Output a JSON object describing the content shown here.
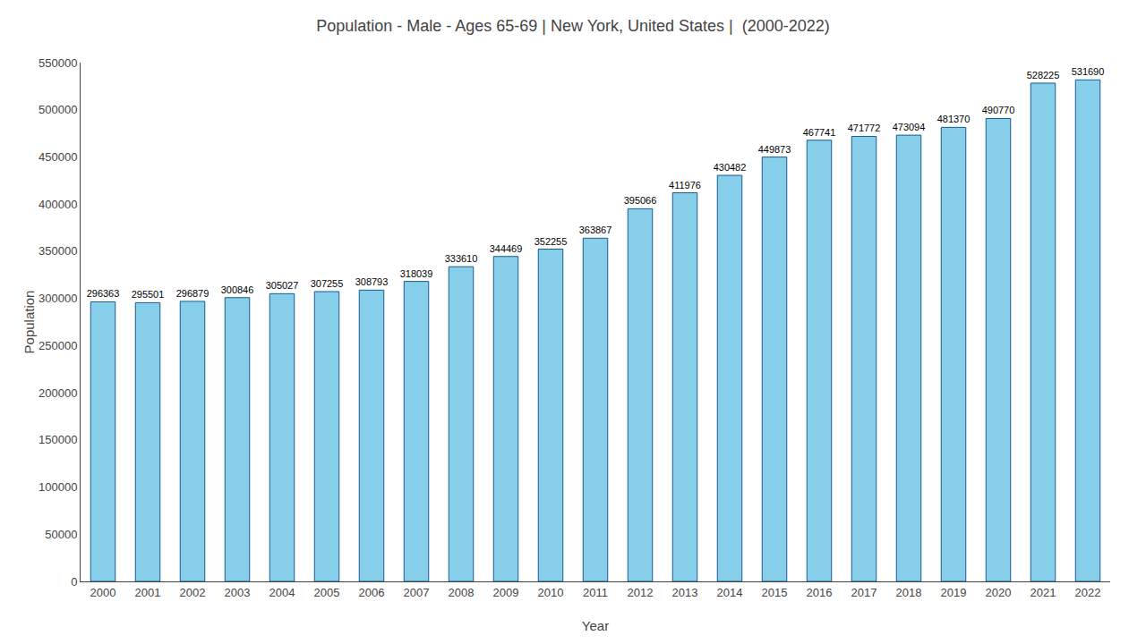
{
  "chart_data": {
    "type": "bar",
    "title": "Population - Male - Ages 65-69 | New York, United States |  (2000-2022)",
    "xlabel": "Year",
    "ylabel": "Population",
    "categories": [
      "2000",
      "2001",
      "2002",
      "2003",
      "2004",
      "2005",
      "2006",
      "2007",
      "2008",
      "2009",
      "2010",
      "2011",
      "2012",
      "2013",
      "2014",
      "2015",
      "2016",
      "2017",
      "2018",
      "2019",
      "2020",
      "2021",
      "2022"
    ],
    "values": [
      296363,
      295501,
      296879,
      300846,
      305027,
      307255,
      308793,
      318039,
      333610,
      344469,
      352255,
      363867,
      395066,
      411976,
      430482,
      449873,
      467741,
      471772,
      473094,
      481370,
      490770,
      528225,
      531690
    ],
    "color": "#87CEEB",
    "ylim": [
      0,
      550000
    ],
    "yticks": [
      0,
      50000,
      100000,
      150000,
      200000,
      250000,
      300000,
      350000,
      400000,
      450000,
      500000,
      550000
    ],
    "grid": false,
    "data_labels": true
  }
}
